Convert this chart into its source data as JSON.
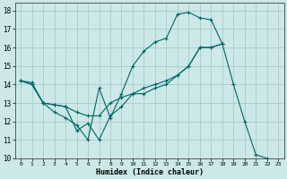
{
  "xlabel": "Humidex (Indice chaleur)",
  "bg_color": "#cce8e8",
  "grid_color": "#aacccc",
  "line_color": "#006666",
  "xlim": [
    -0.5,
    23.5
  ],
  "ylim": [
    10,
    18.4
  ],
  "xticks": [
    0,
    1,
    2,
    3,
    4,
    5,
    6,
    7,
    8,
    9,
    10,
    11,
    12,
    13,
    14,
    15,
    16,
    17,
    18,
    19,
    20,
    21,
    22,
    23
  ],
  "yticks": [
    10,
    11,
    12,
    13,
    14,
    15,
    16,
    17,
    18
  ],
  "series": [
    {
      "x": [
        0,
        1,
        2,
        3,
        4,
        5,
        6,
        7,
        8,
        9,
        10,
        11,
        12,
        13,
        14,
        15,
        16,
        17,
        18,
        19,
        20,
        21,
        22,
        23
      ],
      "y": [
        14.2,
        14.0,
        13.0,
        12.9,
        12.8,
        11.5,
        11.9,
        11.0,
        12.3,
        12.8,
        13.5,
        13.5,
        13.8,
        14.0,
        14.5,
        15.0,
        16.0,
        16.0,
        16.2,
        14.0,
        12.0,
        10.2,
        10.0,
        9.8
      ]
    },
    {
      "x": [
        0,
        1,
        2,
        3,
        4,
        5,
        6,
        7,
        8,
        9,
        10,
        11,
        12,
        13,
        14,
        15,
        16,
        17,
        18
      ],
      "y": [
        14.2,
        14.0,
        13.0,
        12.5,
        12.2,
        11.8,
        11.0,
        13.8,
        12.2,
        13.5,
        15.0,
        15.8,
        16.3,
        16.5,
        17.8,
        17.9,
        17.6,
        17.5,
        16.2
      ]
    },
    {
      "x": [
        0,
        1,
        2,
        3,
        4,
        5,
        6,
        7,
        8,
        9,
        10,
        11,
        12,
        13,
        14,
        15,
        16,
        17,
        18
      ],
      "y": [
        14.2,
        14.1,
        13.0,
        12.9,
        12.8,
        12.5,
        12.3,
        12.3,
        13.0,
        13.3,
        13.5,
        13.8,
        14.0,
        14.2,
        14.5,
        15.0,
        16.0,
        16.0,
        16.2
      ]
    }
  ]
}
